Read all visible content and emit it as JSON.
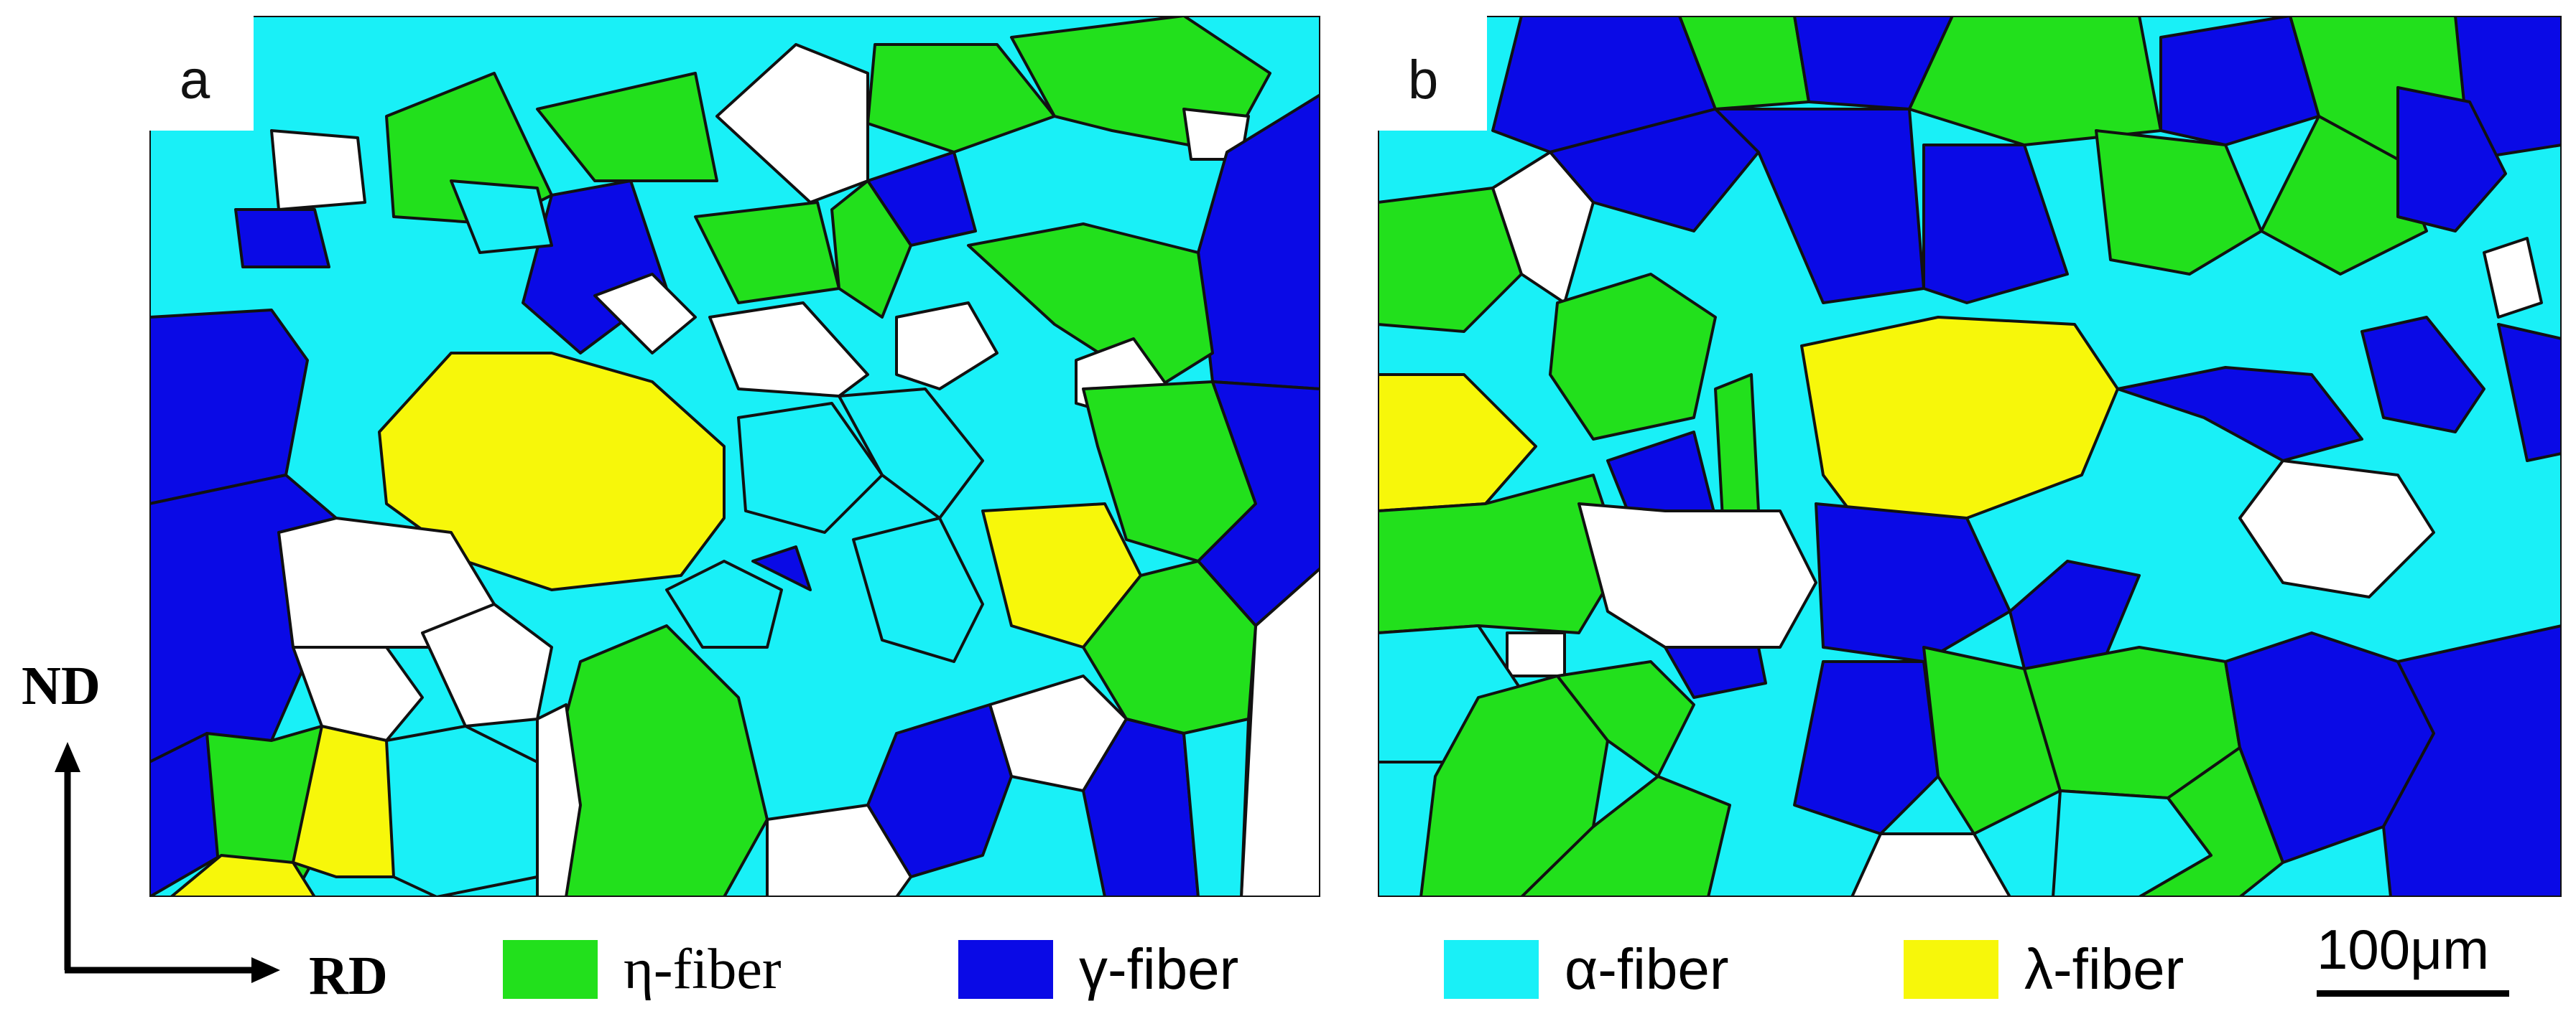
{
  "panels": [
    {
      "label": "a"
    },
    {
      "label": "b"
    }
  ],
  "axes": {
    "vertical": "ND",
    "horizontal": "RD"
  },
  "legend": [
    {
      "label": "η-fiber",
      "color": "#22e01c"
    },
    {
      "label": "γ-fiber",
      "color": "#0a0ae6"
    },
    {
      "label": "α-fiber",
      "color": "#19f0f7"
    },
    {
      "label": "λ-fiber",
      "color": "#f7f70a"
    }
  ],
  "scale_bar": {
    "label": "100μm"
  },
  "colors": {
    "eta": "#22e01c",
    "gamma": "#0a0ae6",
    "alpha": "#19f0f7",
    "lambda": "#f7f70a",
    "unindexed": "#ffffff",
    "boundary": "#111111"
  }
}
